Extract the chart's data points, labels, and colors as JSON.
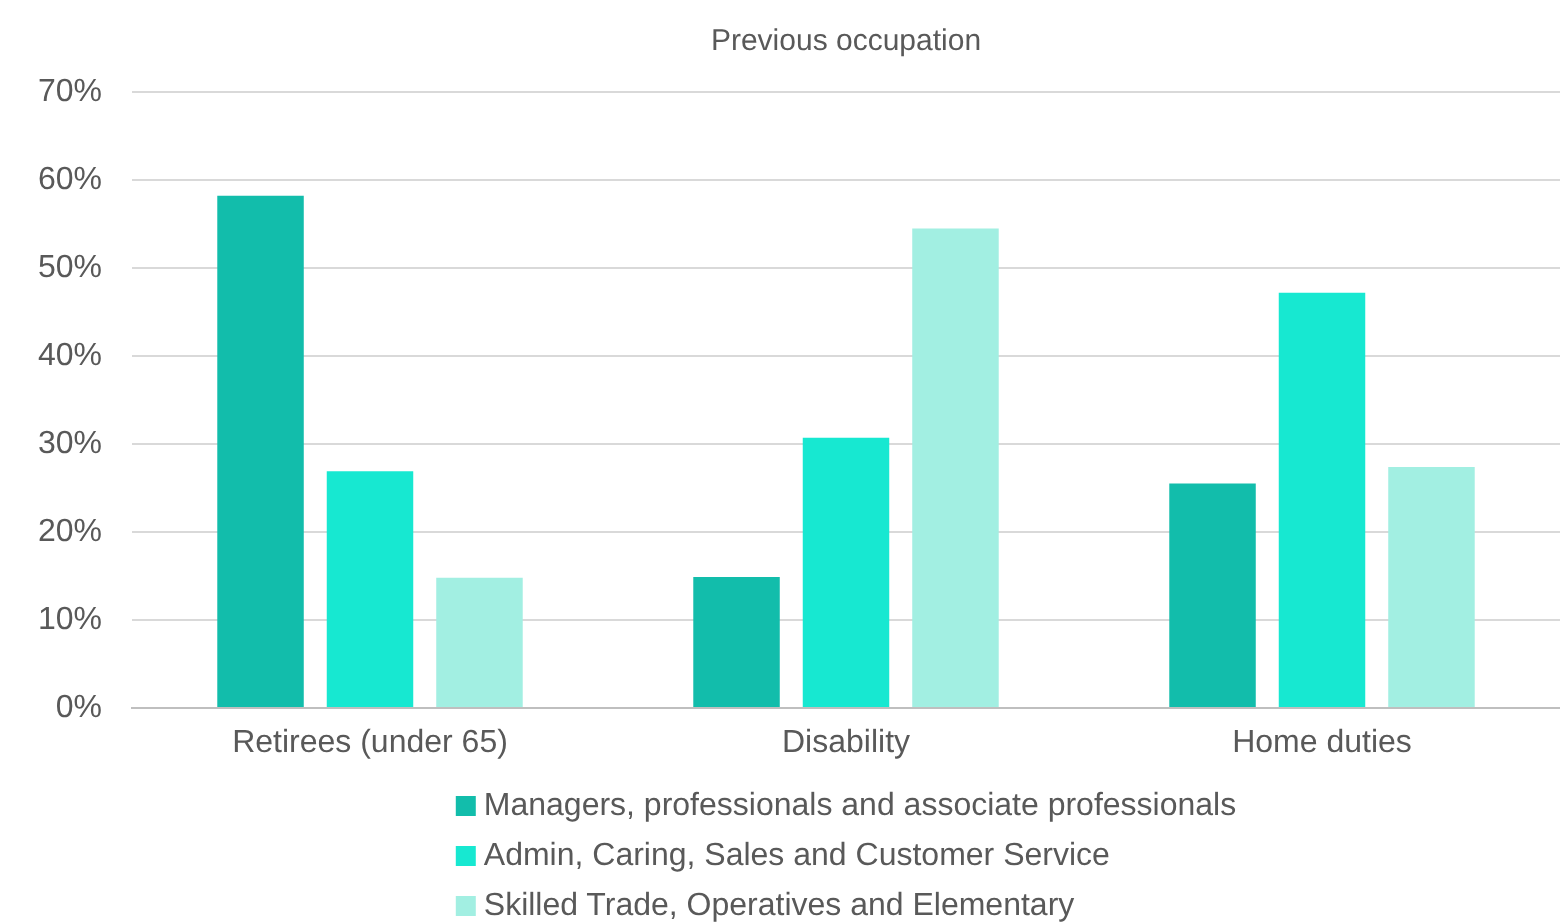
{
  "chart_data": {
    "type": "bar",
    "title": "Previous occupation",
    "categories": [
      "Retirees (under 65)",
      "Disability",
      "Home duties"
    ],
    "series": [
      {
        "name": "Managers, professionals and associate professionals",
        "color": "#12bdab",
        "values": [
          58.2,
          14.9,
          25.5
        ]
      },
      {
        "name": "Admin, Caring, Sales and Customer Service",
        "color": "#17e8d1",
        "values": [
          26.9,
          30.7,
          47.2
        ]
      },
      {
        "name": "Skilled Trade, Operatives and Elementary",
        "color": "#a2efe2",
        "values": [
          14.8,
          54.5,
          27.4
        ]
      }
    ],
    "ylim": [
      0,
      70
    ],
    "yticks": [
      {
        "value": 0,
        "label": "0%"
      },
      {
        "value": 10,
        "label": "10%"
      },
      {
        "value": 20,
        "label": "20%"
      },
      {
        "value": 30,
        "label": "30%"
      },
      {
        "value": 40,
        "label": "40%"
      },
      {
        "value": 50,
        "label": "50%"
      },
      {
        "value": 60,
        "label": "60%"
      },
      {
        "value": 70,
        "label": "70%"
      }
    ],
    "grid": "y",
    "legend": "bottom"
  }
}
